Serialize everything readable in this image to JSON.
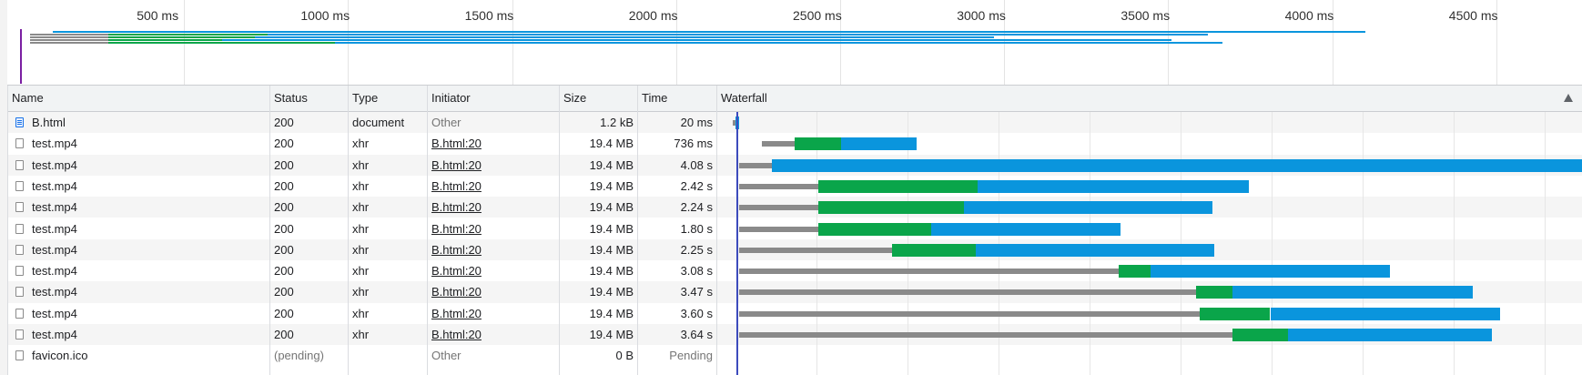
{
  "timeline": {
    "ticks": [
      "500 ms",
      "1000 ms",
      "1500 ms",
      "2000 ms",
      "2500 ms",
      "3000 ms",
      "3500 ms",
      "4000 ms",
      "4500 ms"
    ]
  },
  "columns": {
    "name": "Name",
    "status": "Status",
    "type": "Type",
    "initiator": "Initiator",
    "size": "Size",
    "time": "Time",
    "waterfall": "Waterfall"
  },
  "requests": [
    {
      "name": "B.html",
      "status": "200",
      "type": "document",
      "initiator": "Other",
      "initiator_link": false,
      "size": "1.2 kB",
      "time": "20 ms",
      "icon": "document-icon"
    },
    {
      "name": "test.mp4",
      "status": "200",
      "type": "xhr",
      "initiator": "B.html:20",
      "initiator_link": true,
      "size": "19.4 MB",
      "time": "736 ms",
      "icon": "file-icon"
    },
    {
      "name": "test.mp4",
      "status": "200",
      "type": "xhr",
      "initiator": "B.html:20",
      "initiator_link": true,
      "size": "19.4 MB",
      "time": "4.08 s",
      "icon": "file-icon"
    },
    {
      "name": "test.mp4",
      "status": "200",
      "type": "xhr",
      "initiator": "B.html:20",
      "initiator_link": true,
      "size": "19.4 MB",
      "time": "2.42 s",
      "icon": "file-icon"
    },
    {
      "name": "test.mp4",
      "status": "200",
      "type": "xhr",
      "initiator": "B.html:20",
      "initiator_link": true,
      "size": "19.4 MB",
      "time": "2.24 s",
      "icon": "file-icon"
    },
    {
      "name": "test.mp4",
      "status": "200",
      "type": "xhr",
      "initiator": "B.html:20",
      "initiator_link": true,
      "size": "19.4 MB",
      "time": "1.80 s",
      "icon": "file-icon"
    },
    {
      "name": "test.mp4",
      "status": "200",
      "type": "xhr",
      "initiator": "B.html:20",
      "initiator_link": true,
      "size": "19.4 MB",
      "time": "2.25 s",
      "icon": "file-icon"
    },
    {
      "name": "test.mp4",
      "status": "200",
      "type": "xhr",
      "initiator": "B.html:20",
      "initiator_link": true,
      "size": "19.4 MB",
      "time": "3.08 s",
      "icon": "file-icon"
    },
    {
      "name": "test.mp4",
      "status": "200",
      "type": "xhr",
      "initiator": "B.html:20",
      "initiator_link": true,
      "size": "19.4 MB",
      "time": "3.47 s",
      "icon": "file-icon"
    },
    {
      "name": "test.mp4",
      "status": "200",
      "type": "xhr",
      "initiator": "B.html:20",
      "initiator_link": true,
      "size": "19.4 MB",
      "time": "3.60 s",
      "icon": "file-icon"
    },
    {
      "name": "test.mp4",
      "status": "200",
      "type": "xhr",
      "initiator": "B.html:20",
      "initiator_link": true,
      "size": "19.4 MB",
      "time": "3.64 s",
      "icon": "file-icon"
    },
    {
      "name": "favicon.ico",
      "status": "(pending)",
      "type": "",
      "initiator": "Other",
      "initiator_link": false,
      "size": "0 B",
      "time": "Pending",
      "icon": "file-icon"
    }
  ],
  "waterfall_bars_ms": [
    {
      "waiting": [
        10,
        20
      ],
      "download": [
        20,
        30
      ]
    },
    {
      "waiting": [
        100,
        200
      ],
      "ttfb": [
        200,
        340
      ],
      "download": [
        340,
        570
      ]
    },
    {
      "waiting": [
        30,
        130
      ],
      "ttfb": [
        130,
        130
      ],
      "download": [
        130,
        4100
      ]
    },
    {
      "waiting": [
        30,
        270
      ],
      "ttfb": [
        270,
        755
      ],
      "download": [
        755,
        1580
      ]
    },
    {
      "waiting": [
        30,
        270
      ],
      "ttfb": [
        270,
        715
      ],
      "download": [
        715,
        1470
      ]
    },
    {
      "waiting": [
        30,
        270
      ],
      "ttfb": [
        270,
        615
      ],
      "download": [
        615,
        1190
      ]
    },
    {
      "waiting": [
        30,
        495
      ],
      "ttfb": [
        495,
        750
      ],
      "download": [
        750,
        1475
      ]
    },
    {
      "waiting": [
        30,
        1185
      ],
      "ttfb": [
        1185,
        1280
      ],
      "download": [
        1280,
        2010
      ]
    },
    {
      "waiting": [
        30,
        1420
      ],
      "ttfb": [
        1420,
        1530
      ],
      "download": [
        1530,
        2260
      ]
    },
    {
      "waiting": [
        30,
        1430
      ],
      "ttfb": [
        1430,
        1645
      ],
      "download": [
        1645,
        2345
      ]
    },
    {
      "waiting": [
        30,
        1530
      ],
      "ttfb": [
        1530,
        1700
      ],
      "download": [
        1700,
        2320
      ]
    }
  ],
  "colors": {
    "waiting": "#8a8a8a",
    "ttfb": "#0aa54a",
    "download": "#0a95dd",
    "marker": "#3c4bbd"
  },
  "waterfall_scale_ms": 2600
}
